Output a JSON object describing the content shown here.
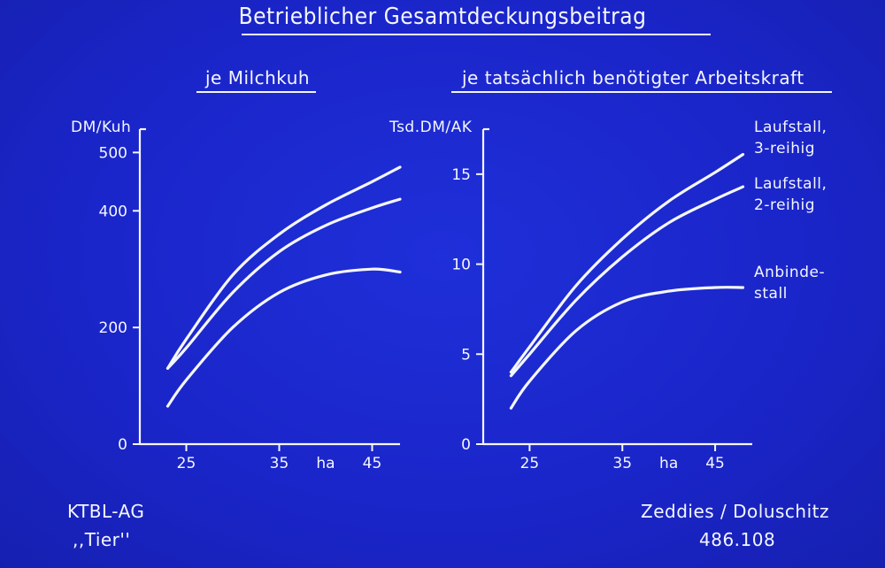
{
  "title": "Betrieblicher Gesamtdeckungsbeitrag",
  "footer": {
    "left_line1": "KTBL-AG",
    "left_line2": ",,Tier''",
    "right_line1": "Zeddies / Doluschitz",
    "right_line2": "486.108"
  },
  "legend_labels": {
    "laufstall3": [
      "Laufstall,",
      "3-reihig"
    ],
    "laufstall2": [
      "Laufstall,",
      "2-reihig"
    ],
    "anbinde": [
      "Anbinde-",
      "stall"
    ]
  },
  "chart_data": [
    {
      "type": "line",
      "subtitle": "je Milchkuh",
      "ylabel": "DM/Kuh",
      "xlabel": "ha",
      "xlim": [
        20,
        48
      ],
      "ylim": [
        0,
        540
      ],
      "xticks": [
        25,
        35,
        45
      ],
      "yticks": [
        0,
        200,
        400,
        500
      ],
      "grid": false,
      "series": [
        {
          "x": [
            23,
            25,
            30,
            35,
            40,
            45,
            48
          ],
          "y": [
            130,
            180,
            290,
            360,
            410,
            450,
            475
          ]
        },
        {
          "x": [
            23,
            25,
            30,
            35,
            40,
            45,
            48
          ],
          "y": [
            130,
            165,
            260,
            330,
            375,
            405,
            420
          ]
        },
        {
          "x": [
            23,
            25,
            30,
            35,
            40,
            45,
            48
          ],
          "y": [
            65,
            110,
            200,
            260,
            290,
            300,
            295
          ]
        }
      ]
    },
    {
      "type": "line",
      "subtitle": "je tatsächlich benötigter Arbeitskraft",
      "ylabel": "Tsd.DM/AK",
      "xlabel": "ha",
      "xlim": [
        20,
        49
      ],
      "ylim": [
        0,
        17.5
      ],
      "xticks": [
        25,
        35,
        45
      ],
      "yticks": [
        0,
        5,
        10,
        15
      ],
      "grid": false,
      "series": [
        {
          "x": [
            23,
            25,
            30,
            35,
            40,
            45,
            48
          ],
          "y": [
            4.0,
            5.4,
            8.8,
            11.4,
            13.5,
            15.1,
            16.1
          ]
        },
        {
          "x": [
            23,
            25,
            30,
            35,
            40,
            45,
            48
          ],
          "y": [
            3.8,
            5.0,
            8.0,
            10.4,
            12.3,
            13.6,
            14.3
          ]
        },
        {
          "x": [
            23,
            25,
            30,
            35,
            40,
            45,
            48
          ],
          "y": [
            2.0,
            3.5,
            6.3,
            7.9,
            8.5,
            8.7,
            8.7
          ]
        }
      ]
    }
  ]
}
